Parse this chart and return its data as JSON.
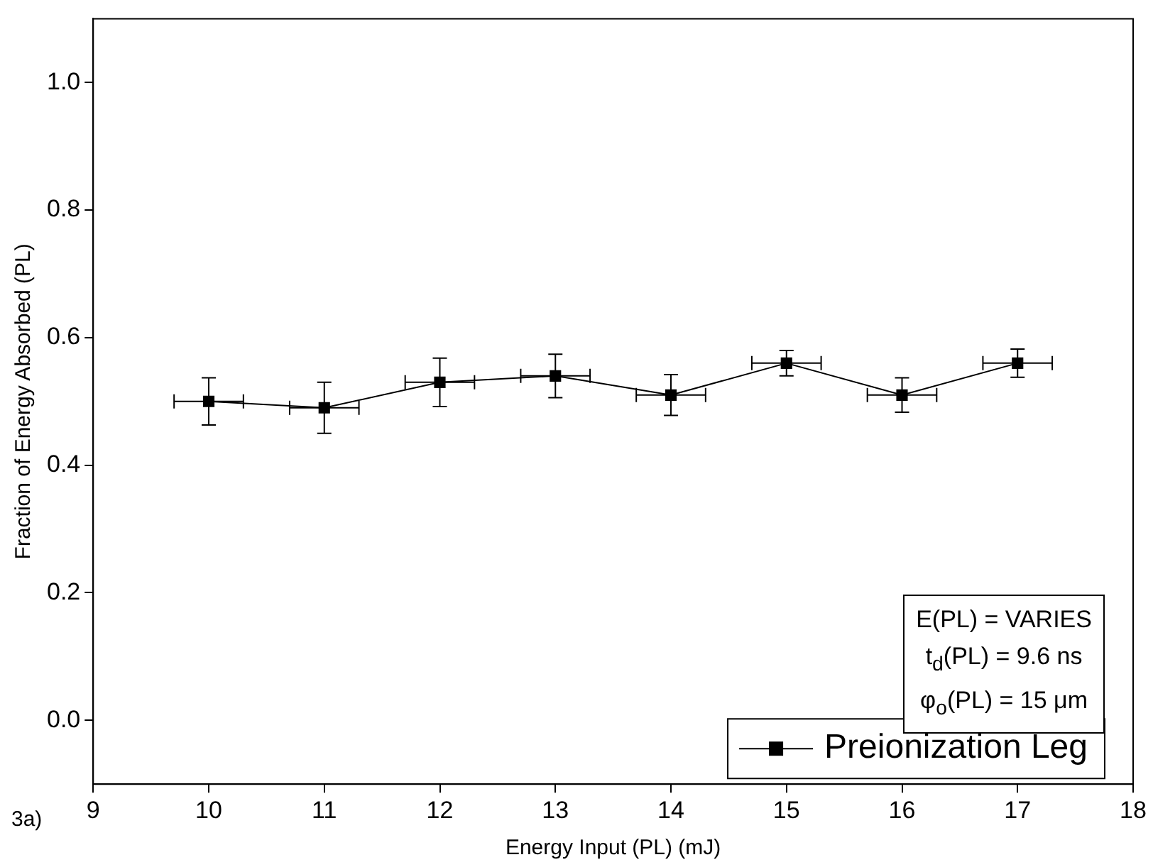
{
  "chart_data": {
    "type": "line",
    "xlabel": "Energy Input (PL) (mJ)",
    "ylabel": "Fraction of Energy Absorbed (PL)",
    "x": [
      10,
      11,
      12,
      13,
      14,
      15,
      16,
      17
    ],
    "series": [
      {
        "name": "Preionization Leg",
        "color": "#000000",
        "values": [
          0.5,
          0.49,
          0.53,
          0.54,
          0.51,
          0.56,
          0.51,
          0.56
        ],
        "errors": [
          0.037,
          0.04,
          0.038,
          0.034,
          0.032,
          0.02,
          0.027,
          0.022
        ],
        "xerrors": [
          0.3,
          0.3,
          0.3,
          0.3,
          0.3,
          0.3,
          0.3,
          0.3
        ]
      }
    ],
    "xlim": [
      9,
      18
    ],
    "xticks": [
      9,
      10,
      11,
      12,
      13,
      14,
      15,
      16,
      17,
      18
    ],
    "ylim": [
      -0.1,
      1.1
    ],
    "yticks": [
      {
        "value": 0,
        "label": "0.0"
      },
      {
        "value": 0.2,
        "label": "0.2"
      },
      {
        "value": 0.4,
        "label": "0.4"
      },
      {
        "value": 0.6,
        "label": "0.6"
      },
      {
        "value": 0.8,
        "label": "0.8"
      },
      {
        "value": 1,
        "label": "1.0"
      }
    ],
    "grid": false,
    "legend": "bottom right",
    "marker": "square",
    "line_style": "solid",
    "annotations": [
      "E(PL) = VARIES",
      "t$_{d}$(PL) = 9.6 ns",
      "φ$_{o}$(PL) = 15 μm",
      "3a)"
    ]
  }
}
